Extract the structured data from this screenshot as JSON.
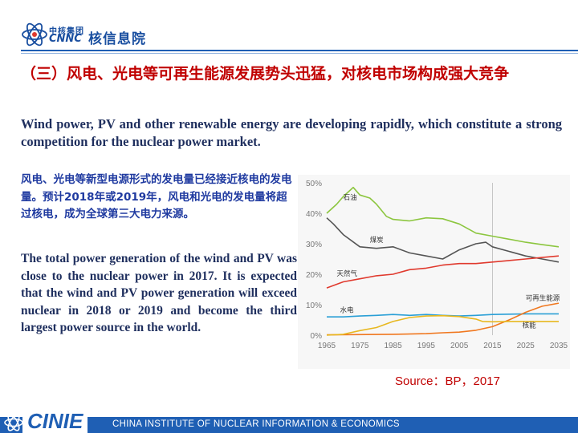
{
  "header": {
    "logo_cn": "中核集团",
    "logo_en": "CNNC",
    "org_name": "核信息院"
  },
  "title": "（三）风电、光电等可再生能源发展势头迅猛，对核电市场构成强大竞争",
  "subtitle": "Wind power, PV and other renewable energy are developing rapidly, which constitute a strong competition for the nuclear power market.",
  "cn_paragraph": "风电、光电等新型电源形式的发电量已经接近核电的发电量。预计2018年或2019年，风电和光电的发电量将超过核电，成为全球第三大电力来源。",
  "en_paragraph": "The total power generation of the wind and PV was close to the nuclear power in 2017. It is expected that the wind and PV power generation will exceed nuclear in 2018 or 2019 and become the third largest power source in the world.",
  "source": "Source：BP，2017",
  "footer": {
    "brand": "CINIE",
    "full_name": "CHINA INSTITUTE OF NUCLEAR INFORMATION & ECONOMICS"
  },
  "colors": {
    "title_red": "#c00000",
    "brand_blue": "#1f5fb4",
    "text_navy": "#1f2f5e",
    "cn_blue": "#1f3aa0"
  },
  "chart_data": {
    "type": "line",
    "xlabel": "",
    "ylabel": "",
    "x_ticks": [
      "1965",
      "1975",
      "1985",
      "1995",
      "2005",
      "2015",
      "2025",
      "2035"
    ],
    "y_ticks": [
      "0%",
      "10%",
      "20%",
      "30%",
      "40%",
      "50%"
    ],
    "xlim": [
      1965,
      2035
    ],
    "ylim": [
      0,
      50
    ],
    "grid": false,
    "series": [
      {
        "name": "石油",
        "color": "#8cc63f",
        "points": [
          [
            1965,
            40
          ],
          [
            1968,
            43
          ],
          [
            1970,
            45.5
          ],
          [
            1972,
            47.5
          ],
          [
            1973,
            48.5
          ],
          [
            1975,
            46
          ],
          [
            1978,
            45
          ],
          [
            1980,
            43
          ],
          [
            1983,
            39
          ],
          [
            1985,
            38
          ],
          [
            1990,
            37.5
          ],
          [
            1995,
            38.5
          ],
          [
            2000,
            38.2
          ],
          [
            2005,
            36.5
          ],
          [
            2010,
            33.5
          ],
          [
            2015,
            32.5
          ],
          [
            2020,
            31.5
          ],
          [
            2025,
            30.5
          ],
          [
            2030,
            29.7
          ],
          [
            2035,
            29
          ]
        ]
      },
      {
        "name": "煤炭",
        "color": "#555555",
        "points": [
          [
            1965,
            38.5
          ],
          [
            1967,
            36.5
          ],
          [
            1970,
            33
          ],
          [
            1975,
            29
          ],
          [
            1980,
            28.5
          ],
          [
            1985,
            29
          ],
          [
            1990,
            27
          ],
          [
            1995,
            26
          ],
          [
            2000,
            25
          ],
          [
            2005,
            28
          ],
          [
            2010,
            30
          ],
          [
            2013,
            30.5
          ],
          [
            2015,
            29
          ],
          [
            2020,
            27.5
          ],
          [
            2025,
            26
          ],
          [
            2030,
            25
          ],
          [
            2035,
            24
          ]
        ]
      },
      {
        "name": "天然气",
        "color": "#e03a2e",
        "points": [
          [
            1965,
            15.5
          ],
          [
            1970,
            17.5
          ],
          [
            1975,
            18.5
          ],
          [
            1980,
            19.5
          ],
          [
            1985,
            20
          ],
          [
            1990,
            21.5
          ],
          [
            1995,
            22
          ],
          [
            2000,
            23
          ],
          [
            2005,
            23.5
          ],
          [
            2010,
            23.5
          ],
          [
            2015,
            24
          ],
          [
            2020,
            24.5
          ],
          [
            2025,
            25
          ],
          [
            2030,
            25.5
          ],
          [
            2035,
            26
          ]
        ]
      },
      {
        "name": "水电",
        "color": "#2a9fd6",
        "points": [
          [
            1965,
            6
          ],
          [
            1970,
            6
          ],
          [
            1975,
            6.3
          ],
          [
            1980,
            6.5
          ],
          [
            1985,
            6.8
          ],
          [
            1990,
            6.5
          ],
          [
            1995,
            6.8
          ],
          [
            2000,
            6.5
          ],
          [
            2005,
            6.3
          ],
          [
            2010,
            6.5
          ],
          [
            2015,
            6.8
          ],
          [
            2020,
            6.9
          ],
          [
            2025,
            7
          ],
          [
            2030,
            7
          ],
          [
            2035,
            7
          ]
        ]
      },
      {
        "name": "可再生能源",
        "color": "#f07820",
        "points": [
          [
            1965,
            0.1
          ],
          [
            1985,
            0.3
          ],
          [
            1995,
            0.5
          ],
          [
            2000,
            0.8
          ],
          [
            2005,
            1
          ],
          [
            2010,
            1.6
          ],
          [
            2015,
            2.8
          ],
          [
            2020,
            5
          ],
          [
            2025,
            7.5
          ],
          [
            2030,
            9.5
          ],
          [
            2035,
            10.5
          ]
        ]
      },
      {
        "name": "核能",
        "color": "#e8b820",
        "points": [
          [
            1965,
            0
          ],
          [
            1970,
            0.3
          ],
          [
            1975,
            1.5
          ],
          [
            1980,
            2.5
          ],
          [
            1985,
            4.5
          ],
          [
            1990,
            5.8
          ],
          [
            1995,
            6.3
          ],
          [
            2000,
            6.4
          ],
          [
            2005,
            6.1
          ],
          [
            2010,
            5.3
          ],
          [
            2012,
            4.5
          ],
          [
            2015,
            4.4
          ],
          [
            2020,
            4.5
          ],
          [
            2025,
            4.5
          ],
          [
            2030,
            4.5
          ],
          [
            2035,
            4.5
          ]
        ]
      }
    ],
    "labels": [
      {
        "text": "石油",
        "x": 1970,
        "y": 44.5
      },
      {
        "text": "煤炭",
        "x": 1978,
        "y": 30.5
      },
      {
        "text": "天然气",
        "x": 1968,
        "y": 19.5
      },
      {
        "text": "水电",
        "x": 1969,
        "y": 7.5
      },
      {
        "text": "可再生能源",
        "x": 2025,
        "y": 11.5
      },
      {
        "text": "核能",
        "x": 2024,
        "y": 2.5
      }
    ]
  }
}
